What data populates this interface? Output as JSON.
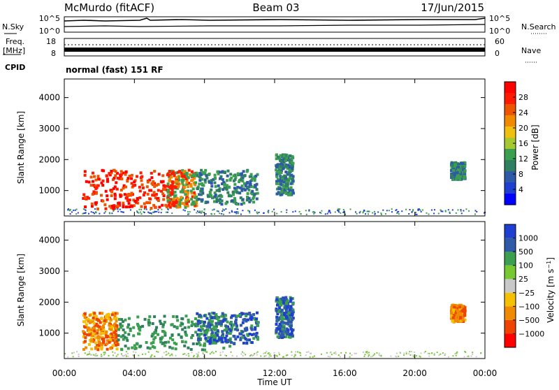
{
  "header": {
    "station": "McMurdo (fitACF)",
    "beam": "Beam 03",
    "date": "17/Jun/2015"
  },
  "strip_panels": {
    "nsky_label": "N.Sky",
    "nsky_ticks": [
      "10^5",
      "10^0"
    ],
    "nsearch_label": "N.Search",
    "nsearch_ticks": [
      "10^5",
      "10^0"
    ],
    "freq_label_1": "Freq.",
    "freq_label_2": "[MHz]",
    "freq_ticks": [
      "18",
      "8"
    ],
    "nave_label": "Nave",
    "nave_ticks": [
      "60",
      "0"
    ],
    "cpid_label": "CPID",
    "cpid_value": "normal (fast) 151 RF"
  },
  "chart_data": [
    {
      "type": "heatmap",
      "name": "power",
      "ylabel": "Slant Range [km]",
      "yticks": [
        "1000",
        "2000",
        "3000",
        "4000"
      ],
      "ylim": [
        180,
        4600
      ],
      "xlim": [
        0,
        24
      ],
      "colorbar": {
        "label": "Power [dB]",
        "ticks": [
          "28",
          "24",
          "20",
          "16",
          "12",
          "8",
          "4"
        ],
        "range": [
          0,
          32
        ],
        "colors": [
          "#0000ff",
          "#1f3fd0",
          "#2e5aa8",
          "#2f8060",
          "#3c9f50",
          "#a8c832",
          "#f0c010",
          "#f08a00",
          "#ee5500",
          "#ff1a00",
          "#ff0000"
        ]
      },
      "features": [
        {
          "t": [
            1.0,
            5.8
          ],
          "r": [
            450,
            1700
          ],
          "power": "high (24-32 dB)"
        },
        {
          "t": [
            5.8,
            7.5
          ],
          "r": [
            500,
            1700
          ],
          "power": "medium-high"
        },
        {
          "t": [
            7.5,
            11.0
          ],
          "r": [
            600,
            1700
          ],
          "power": "medium"
        },
        {
          "t": [
            12.0,
            13.0
          ],
          "r": [
            900,
            2200
          ],
          "power": "medium"
        },
        {
          "t": [
            22.0,
            22.8
          ],
          "r": [
            1400,
            1950
          ],
          "power": "low-medium"
        }
      ]
    },
    {
      "type": "heatmap",
      "name": "velocity",
      "ylabel": "Slant Range [km]",
      "yticks": [
        "1000",
        "2000",
        "3000",
        "4000"
      ],
      "ylim": [
        180,
        4600
      ],
      "xlim": [
        0,
        24
      ],
      "colorbar": {
        "label": "Velocity [m s^-1]",
        "ticks": [
          "1000",
          "500",
          "100",
          "25",
          "−25",
          "−100",
          "−500",
          "−1000"
        ],
        "colors": [
          "#ff0000",
          "#ee4400",
          "#f08a00",
          "#f5c000",
          "#c8c8c8",
          "#78c832",
          "#3c9f50",
          "#2e5aa8",
          "#1f3fd0"
        ]
      },
      "features": [
        {
          "t": [
            1.0,
            3.0
          ],
          "r": [
            500,
            1700
          ],
          "velocity": "-500 to -100"
        },
        {
          "t": [
            3.0,
            9.5
          ],
          "r": [
            500,
            1600
          ],
          "velocity": "100 to 500"
        },
        {
          "t": [
            7.5,
            11.0
          ],
          "r": [
            700,
            1700
          ],
          "velocity": "500 to 1000"
        },
        {
          "t": [
            12.0,
            13.0
          ],
          "r": [
            900,
            2200
          ],
          "velocity": "500 to 1000"
        },
        {
          "t": [
            22.0,
            22.8
          ],
          "r": [
            1400,
            1950
          ],
          "velocity": "-500 to -100"
        }
      ]
    }
  ],
  "xaxis": {
    "ticks": [
      "00:00",
      "04:00",
      "08:00",
      "12:00",
      "16:00",
      "20:00",
      "00:00"
    ],
    "label": "Time UT"
  }
}
